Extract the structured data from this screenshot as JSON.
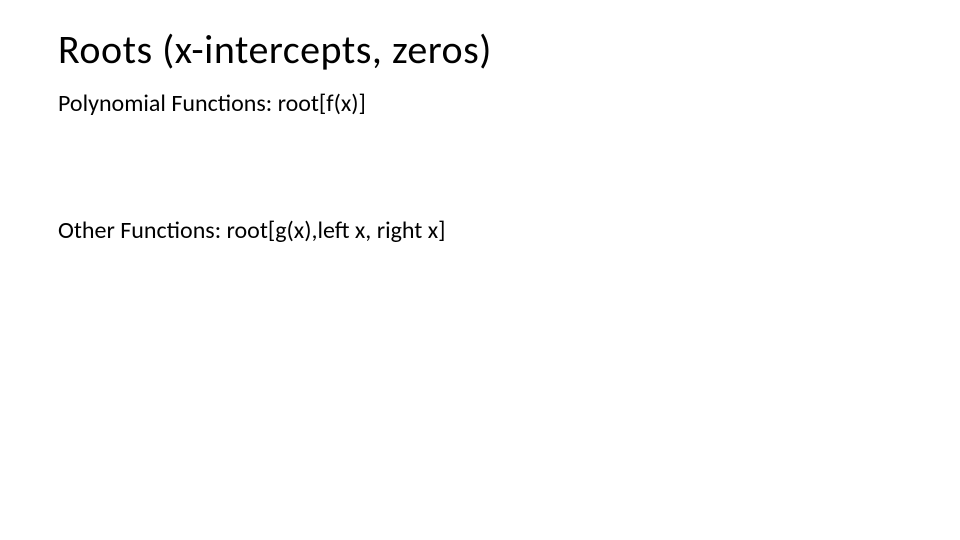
{
  "slide": {
    "title": "Roots (x-intercepts, zeros)",
    "line1": "Polynomial Functions: root[f(x)]",
    "line2": "Other Functions: root[g(x),left x, right x]",
    "background_color": "#ffffff",
    "text_color": "#000000",
    "title_fontsize": 40,
    "body_fontsize": 24,
    "font_family": "Calibri"
  }
}
